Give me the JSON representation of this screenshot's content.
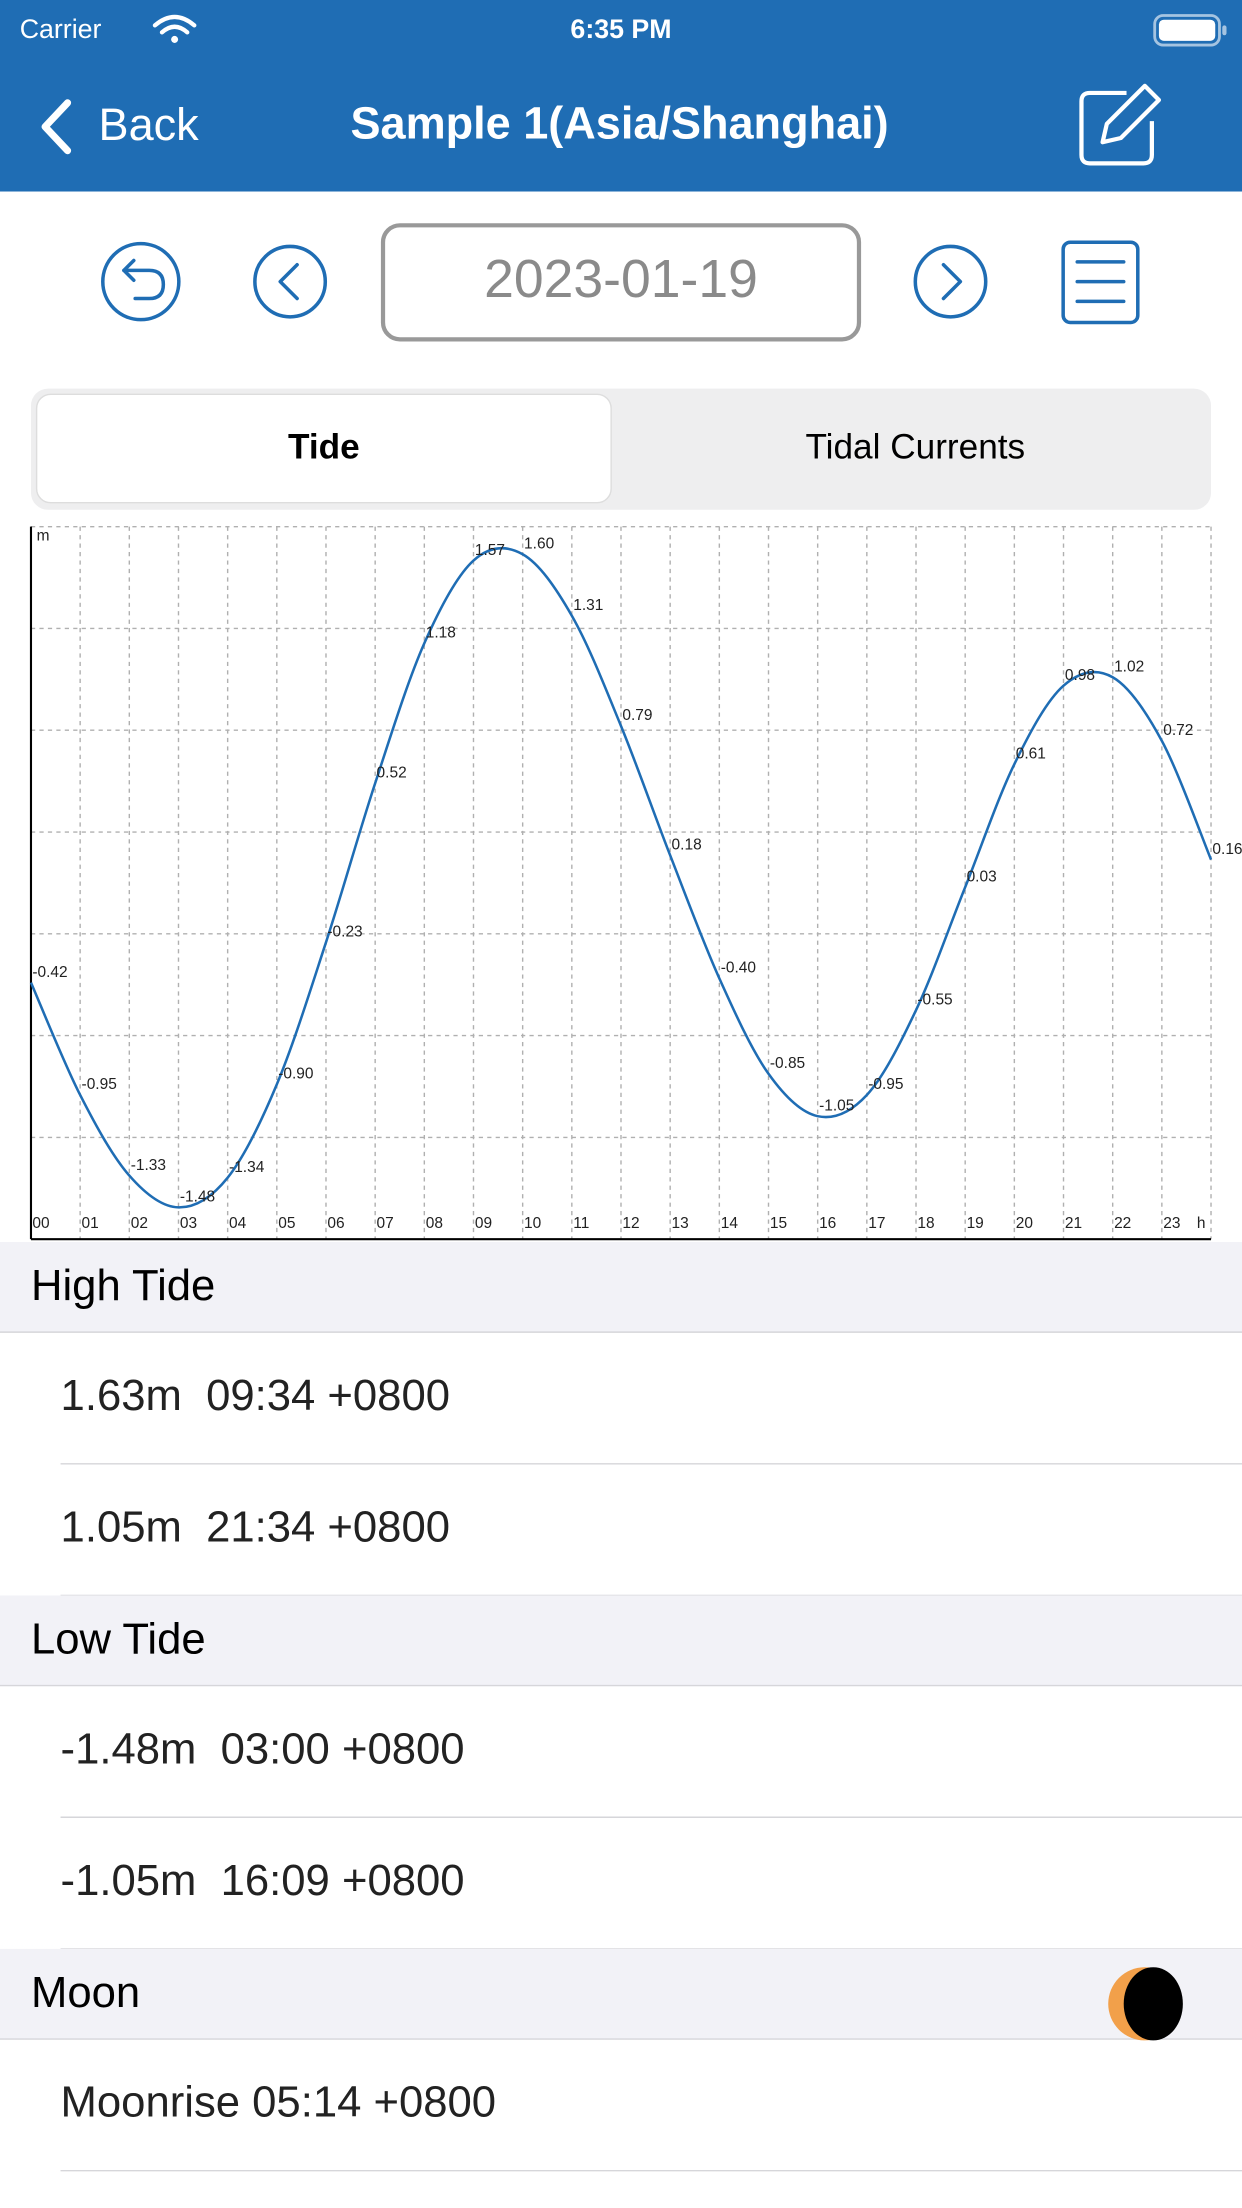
{
  "status_bar": {
    "carrier": "Carrier",
    "time": "6:35 PM"
  },
  "nav": {
    "back": "Back",
    "title": "Sample 1(Asia/Shanghai)"
  },
  "date": "2023-01-19",
  "segments": [
    "Tide",
    "Tidal Currents"
  ],
  "chart_data": {
    "type": "line",
    "color": "#1f6db4",
    "grid": true,
    "x_unit": "h",
    "y_unit": "m",
    "x": [
      0,
      1,
      2,
      3,
      4,
      5,
      6,
      7,
      8,
      9,
      10,
      11,
      12,
      13,
      14,
      15,
      16,
      17,
      18,
      19,
      20,
      21,
      22,
      23,
      24
    ],
    "values": [
      -0.42,
      -0.95,
      -1.33,
      -1.48,
      -1.34,
      -0.9,
      -0.23,
      0.52,
      1.18,
      1.57,
      1.6,
      1.31,
      0.79,
      0.18,
      -0.4,
      -0.85,
      -1.05,
      -0.95,
      -0.55,
      0.03,
      0.61,
      0.98,
      1.02,
      0.72,
      0.16
    ],
    "value_labels": [
      "-0.42",
      "-0.95",
      "-1.33",
      "-1.48",
      "-1.34",
      "-0.90",
      "-0.23",
      "0.52",
      "1.18",
      "1.57",
      "1.60",
      "1.31",
      "0.79",
      "0.18",
      "-0.40",
      "-0.85",
      "-1.05",
      "-0.95",
      "-0.55",
      "0.03",
      "0.61",
      "0.98",
      "1.02",
      "0.72",
      "0.16"
    ],
    "xlim": [
      0,
      24
    ],
    "ylim": [
      -1.63,
      1.73
    ],
    "xticks": [
      {
        "value": 0,
        "label": "00"
      },
      {
        "value": 1,
        "label": "01"
      },
      {
        "value": 2,
        "label": "02"
      },
      {
        "value": 3,
        "label": "03"
      },
      {
        "value": 4,
        "label": "04"
      },
      {
        "value": 5,
        "label": "05"
      },
      {
        "value": 6,
        "label": "06"
      },
      {
        "value": 7,
        "label": "07"
      },
      {
        "value": 8,
        "label": "08"
      },
      {
        "value": 9,
        "label": "09"
      },
      {
        "value": 10,
        "label": "10"
      },
      {
        "value": 11,
        "label": "11"
      },
      {
        "value": 12,
        "label": "12"
      },
      {
        "value": 13,
        "label": "13"
      },
      {
        "value": 14,
        "label": "14"
      },
      {
        "value": 15,
        "label": "15"
      },
      {
        "value": 16,
        "label": "16"
      },
      {
        "value": 17,
        "label": "17"
      },
      {
        "value": 18,
        "label": "18"
      },
      {
        "value": 19,
        "label": "19"
      },
      {
        "value": 20,
        "label": "20"
      },
      {
        "value": 21,
        "label": "21"
      },
      {
        "value": 22,
        "label": "22"
      },
      {
        "value": 23,
        "label": "23"
      }
    ],
    "yticks": [
      -1.15,
      -0.67,
      -0.19,
      0.29,
      0.77,
      1.25,
      1.73
    ]
  },
  "sections": [
    {
      "title": "High Tide",
      "rows": [
        "1.63m  09:34 +0800",
        "1.05m  21:34 +0800"
      ]
    },
    {
      "title": "Low Tide",
      "rows": [
        "-1.48m  03:00 +0800",
        "-1.05m  16:09 +0800"
      ]
    },
    {
      "title": "Moon",
      "rows": [
        "Moonrise 05:14 +0800"
      ]
    }
  ]
}
